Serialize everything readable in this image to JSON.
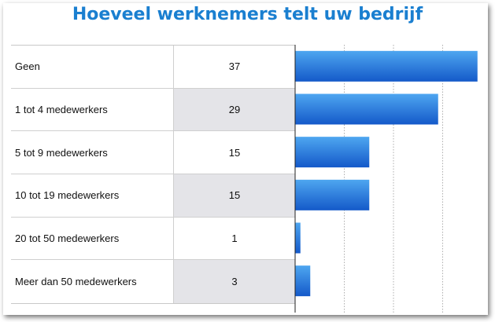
{
  "chart_data": {
    "type": "bar",
    "orientation": "horizontal",
    "title": "Hoeveel werknemers telt uw bedrijf",
    "categories": [
      "Geen",
      "1 tot 4 medewerkers",
      "5 tot 9 medewerkers",
      "10 tot 19 medewerkers",
      "20 tot 50 medewerkers",
      "Meer dan 50 medewerkers"
    ],
    "values": [
      37,
      29,
      15,
      15,
      1,
      3
    ],
    "xlim": [
      0,
      40
    ],
    "grid": true,
    "colors": {
      "bar_top": "#4ea6f0",
      "bar_bottom": "#1459c9",
      "title": "#1a7fd0",
      "alt_row": "#e4e4e8"
    }
  }
}
